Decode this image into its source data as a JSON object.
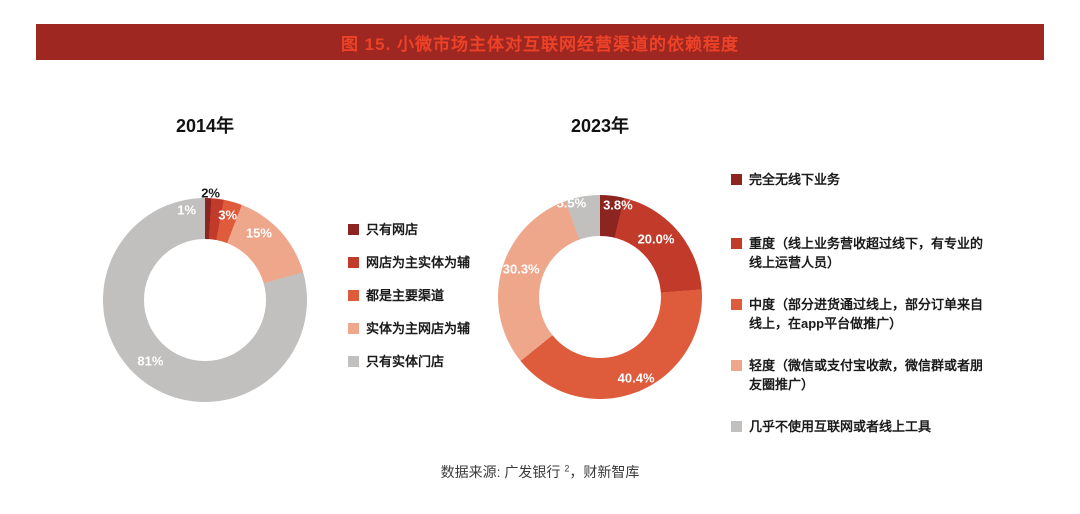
{
  "header": {
    "title": "图 15. 小微市场主体对互联网经营渠道的依赖程度",
    "banner_bg": "#9F2721",
    "banner_text_color": "#ED4227"
  },
  "chart_data": [
    {
      "type": "pie",
      "donut": true,
      "title": "2014年",
      "unit": "%",
      "start_angle_deg": 0,
      "direction": "clockwise",
      "legend_position": "right",
      "slices": [
        {
          "label": "只有网店",
          "value": 1,
          "display": "1%",
          "color": "#8C2420",
          "label_color": "#FFFFFF",
          "label_angle": 348.5,
          "label_radius": 0.9
        },
        {
          "label": "网店为主实体为辅",
          "value": 2,
          "display": "2%",
          "color": "#C23B2A",
          "label_color": "#1A1A1A",
          "label_angle": 3,
          "label_radius": 1.05
        },
        {
          "label": "都是主要渠道",
          "value": 3,
          "display": "3%",
          "color": "#DE5B3C",
          "label_color": "#FFFFFF",
          "label_angle": 15,
          "label_radius": 0.86
        },
        {
          "label": "实体为主网店为辅",
          "value": 15,
          "display": "15%",
          "color": "#EFA78C",
          "label_color": "#FFFFFF",
          "label_angle": 39,
          "label_radius": 0.84
        },
        {
          "label": "只有实体门店",
          "value": 81,
          "display": "81%",
          "color": "#C1C0BF",
          "label_color": "#FFFFFF",
          "label_angle": 222,
          "label_radius": 0.8
        }
      ]
    },
    {
      "type": "pie",
      "donut": true,
      "title": "2023年",
      "unit": "%",
      "start_angle_deg": 0,
      "direction": "clockwise",
      "legend_position": "right",
      "slices": [
        {
          "label": "完全无线下业务",
          "value": 3.8,
          "display": "3.8%",
          "color": "#8C2420",
          "label_color": "#FFFFFF",
          "label_angle": 11,
          "label_radius": 0.92
        },
        {
          "label": "重度（线上业务营收超过线下，有专业的线上运营人员）",
          "value": 20.0,
          "display": "20.0%",
          "color": "#C23B2A",
          "label_color": "#FFFFFF",
          "label_angle": 44,
          "label_radius": 0.79
        },
        {
          "label": "中度（部分进货通过线上，部分订单来自线上，在app平台做推广）",
          "value": 40.4,
          "display": "40.4%",
          "color": "#DE5B3C",
          "label_color": "#FFFFFF",
          "label_angle": 156,
          "label_radius": 0.87
        },
        {
          "label": "轻度（微信或支付宝收款，微信群或者朋友圈推广）",
          "value": 30.3,
          "display": "30.3%",
          "color": "#EFA78C",
          "label_color": "#FFFFFF",
          "label_angle": 289.5,
          "label_radius": 0.82
        },
        {
          "label": "几乎不使用互联网或者线上工具",
          "value": 5.5,
          "display": "5.5%",
          "color": "#C1C0BF",
          "label_color": "#FFFFFF",
          "label_angle": 343,
          "label_radius": 0.96
        }
      ]
    }
  ],
  "footer": {
    "source_prefix": "数据来源: 广发银行 ",
    "source_sup": "2",
    "source_suffix": "，财新智库"
  }
}
